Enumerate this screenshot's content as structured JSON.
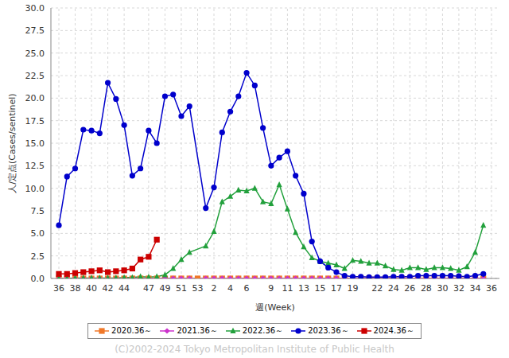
{
  "chart_data": {
    "type": "line",
    "x_label": "週(Week)",
    "y_label": "人/定点(Cases/sentinel)",
    "annotation": "(C)2002-2024 Tokyo Metropolitan Institute of Public Health",
    "categories": [
      "36",
      null,
      "38",
      null,
      "40",
      null,
      "42",
      null,
      "44",
      null,
      null,
      "47",
      null,
      "49",
      null,
      "51",
      null,
      "53",
      null,
      "2",
      null,
      "4",
      null,
      "6",
      null,
      null,
      "9",
      null,
      "11",
      null,
      "13",
      null,
      "15",
      null,
      "17",
      null,
      "19",
      null,
      null,
      "22",
      null,
      "24",
      null,
      "26",
      null,
      "28",
      null,
      "30",
      null,
      "32",
      null,
      "34",
      null,
      "36"
    ],
    "ylim": [
      0,
      30
    ],
    "yticks": [
      {
        "value": 0,
        "label": "0.0"
      },
      {
        "value": 2.5,
        "label": "2.5"
      },
      {
        "value": 5,
        "label": "5.0"
      },
      {
        "value": 7.5,
        "label": "7.5"
      },
      {
        "value": 10,
        "label": "10.0"
      },
      {
        "value": 12.5,
        "label": "12.5"
      },
      {
        "value": 15,
        "label": "15.0"
      },
      {
        "value": 17.5,
        "label": "17.5"
      },
      {
        "value": 20,
        "label": "20.0"
      },
      {
        "value": 22.5,
        "label": "22.5"
      },
      {
        "value": 25,
        "label": "25.0"
      },
      {
        "value": 27.5,
        "label": "27.5"
      },
      {
        "value": 30,
        "label": "30.0"
      }
    ],
    "grid": true,
    "legend": "bottom",
    "series": [
      {
        "name": "2020.36～",
        "color": "#f07828",
        "marker": "square",
        "values": [
          0,
          0,
          0,
          0,
          0,
          0,
          0,
          0,
          0,
          0,
          0,
          0,
          0,
          0,
          0,
          0,
          0,
          0,
          0,
          0,
          0,
          0,
          0,
          0,
          0,
          0,
          0,
          0,
          0,
          0,
          0,
          0,
          0,
          0,
          0,
          0,
          0,
          0,
          0,
          0,
          0,
          0,
          0,
          0,
          0,
          0,
          0,
          0,
          0,
          0,
          0,
          0,
          0,
          null
        ]
      },
      {
        "name": "2021.36～",
        "color": "#cc33cc",
        "marker": "diamond",
        "values": [
          0,
          0,
          0,
          0,
          0,
          0,
          0,
          0,
          0,
          0,
          0,
          0,
          0,
          0,
          0,
          0,
          0,
          null,
          0,
          0,
          0,
          0,
          0,
          0,
          0,
          0,
          0,
          0,
          0,
          0,
          0,
          0,
          0,
          0,
          0,
          0,
          0,
          0,
          0,
          0,
          0,
          0,
          0,
          0,
          0,
          0,
          0,
          0,
          0,
          0,
          0,
          0,
          0,
          null
        ]
      },
      {
        "name": "2022.36～",
        "color": "#22a03c",
        "marker": "triangle",
        "values": [
          0,
          0,
          0.05,
          0.05,
          0.05,
          0.05,
          0.05,
          0.05,
          0.1,
          0.1,
          0.2,
          0.15,
          0.2,
          0.4,
          1.1,
          2.1,
          2.9,
          null,
          3.6,
          5.2,
          8.5,
          9.1,
          9.8,
          9.7,
          10.0,
          8.5,
          8.3,
          10.4,
          7.7,
          5.1,
          3.5,
          2.3,
          1.9,
          1.7,
          1.5,
          1.1,
          2.0,
          1.9,
          1.7,
          1.7,
          1.4,
          1.0,
          0.9,
          1.2,
          1.2,
          1.0,
          1.2,
          1.2,
          1.1,
          0.9,
          1.3,
          2.9,
          5.9,
          null
        ]
      },
      {
        "name": "2023.36～",
        "color": "#0000cc",
        "marker": "circle",
        "values": [
          5.9,
          11.3,
          12.2,
          16.5,
          16.4,
          16.1,
          21.7,
          19.9,
          17.0,
          11.4,
          12.2,
          16.4,
          15.0,
          20.2,
          20.4,
          18.0,
          19.1,
          null,
          7.8,
          10.1,
          16.2,
          18.5,
          20.2,
          22.8,
          21.4,
          16.7,
          12.5,
          13.4,
          14.1,
          11.4,
          9.4,
          4.1,
          1.9,
          1.2,
          0.7,
          0.3,
          0.2,
          0.2,
          0.15,
          0.15,
          0.15,
          0.2,
          0.2,
          0.2,
          0.3,
          0.3,
          0.3,
          0.3,
          0.3,
          0.25,
          0.2,
          0.3,
          0.5,
          null
        ]
      },
      {
        "name": "2024.36～",
        "color": "#cc0000",
        "marker": "square",
        "values": [
          0.5,
          0.5,
          0.6,
          0.7,
          0.8,
          0.9,
          0.7,
          0.8,
          0.9,
          1.1,
          2.1,
          2.4,
          4.3,
          null,
          null,
          null,
          null,
          null,
          null,
          null,
          null,
          null,
          null,
          null,
          null,
          null,
          null,
          null,
          null,
          null,
          null,
          null,
          null,
          null,
          null,
          null,
          null,
          null,
          null,
          null,
          null,
          null,
          null,
          null,
          null,
          null,
          null,
          null,
          null,
          null,
          null,
          null,
          null,
          null
        ]
      }
    ]
  }
}
